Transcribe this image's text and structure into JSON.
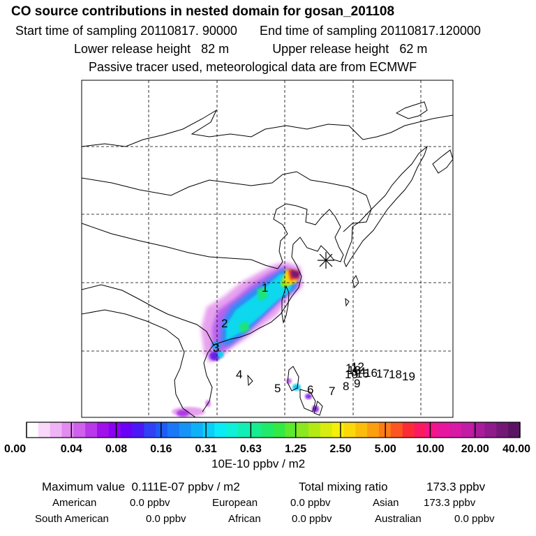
{
  "title": "CO  source contributions in nested domain for gosan_201108",
  "sampling": {
    "start_label": "Start time of sampling",
    "start_value": "20110817. 90000",
    "end_label": "End time of sampling",
    "end_value": "20110817.120000"
  },
  "release": {
    "lower_label": "Lower release height",
    "lower_value": "82 m",
    "upper_label": "Upper release height",
    "upper_value": "62 m"
  },
  "note": "Passive tracer used, meteorological data are from ECMWF",
  "map": {
    "receptor_marker": "asterisk-icon",
    "source_labels": [
      "1",
      "2",
      "3",
      "4",
      "5",
      "6",
      "7",
      "8",
      "9",
      "10",
      "11",
      "12",
      "13",
      "14",
      "15",
      "16",
      "17",
      "18",
      "19"
    ]
  },
  "colorbar": {
    "tick_labels": [
      "0.00",
      "0.04",
      "0.08",
      "0.16",
      "0.31",
      "0.63",
      "1.25",
      "2.50",
      "5.00",
      "10.00",
      "20.00",
      "40.00"
    ],
    "unit_label": "10E-10 ppbv / m2",
    "colors": [
      "#ffffff",
      "#f9d8fa",
      "#f0b3f5",
      "#e28bf0",
      "#cf61ec",
      "#b838ea",
      "#a010ea",
      "#8a00f0",
      "#6a00f5",
      "#4a18f5",
      "#3040f5",
      "#1f5cf6",
      "#1a78f6",
      "#1494f7",
      "#10b0f8",
      "#0ccef9",
      "#0aeaf7",
      "#0ff0d8",
      "#12efb6",
      "#18ec90",
      "#1fea6a",
      "#33e944",
      "#5ee82e",
      "#8be81e",
      "#b4ea14",
      "#d8ed0e",
      "#f5ef0a",
      "#fbd80a",
      "#fbbd0c",
      "#fb9e10",
      "#fb7c18",
      "#fb5622",
      "#fb2c36",
      "#f91a60",
      "#f4148a",
      "#e8169e",
      "#d81aa6",
      "#c21ca4",
      "#a81c9a",
      "#8e1a8c",
      "#741878",
      "#5a1462"
    ]
  },
  "summary": {
    "max_label": "Maximum value",
    "max_value": "0.111E-07 ppbv / m2",
    "total_label": "Total mixing ratio",
    "total_value": "173.3 ppbv",
    "rows": [
      [
        {
          "label": "American",
          "value": "0.0 ppbv"
        },
        {
          "label": "European",
          "value": "0.0 ppbv"
        },
        {
          "label": "Asian",
          "value": "173.3 ppbv"
        }
      ],
      [
        {
          "label": "South American",
          "value": "0.0 ppbv"
        },
        {
          "label": "African",
          "value": "0.0 ppbv"
        },
        {
          "label": "Australian",
          "value": "0.0 ppbv"
        }
      ]
    ]
  }
}
